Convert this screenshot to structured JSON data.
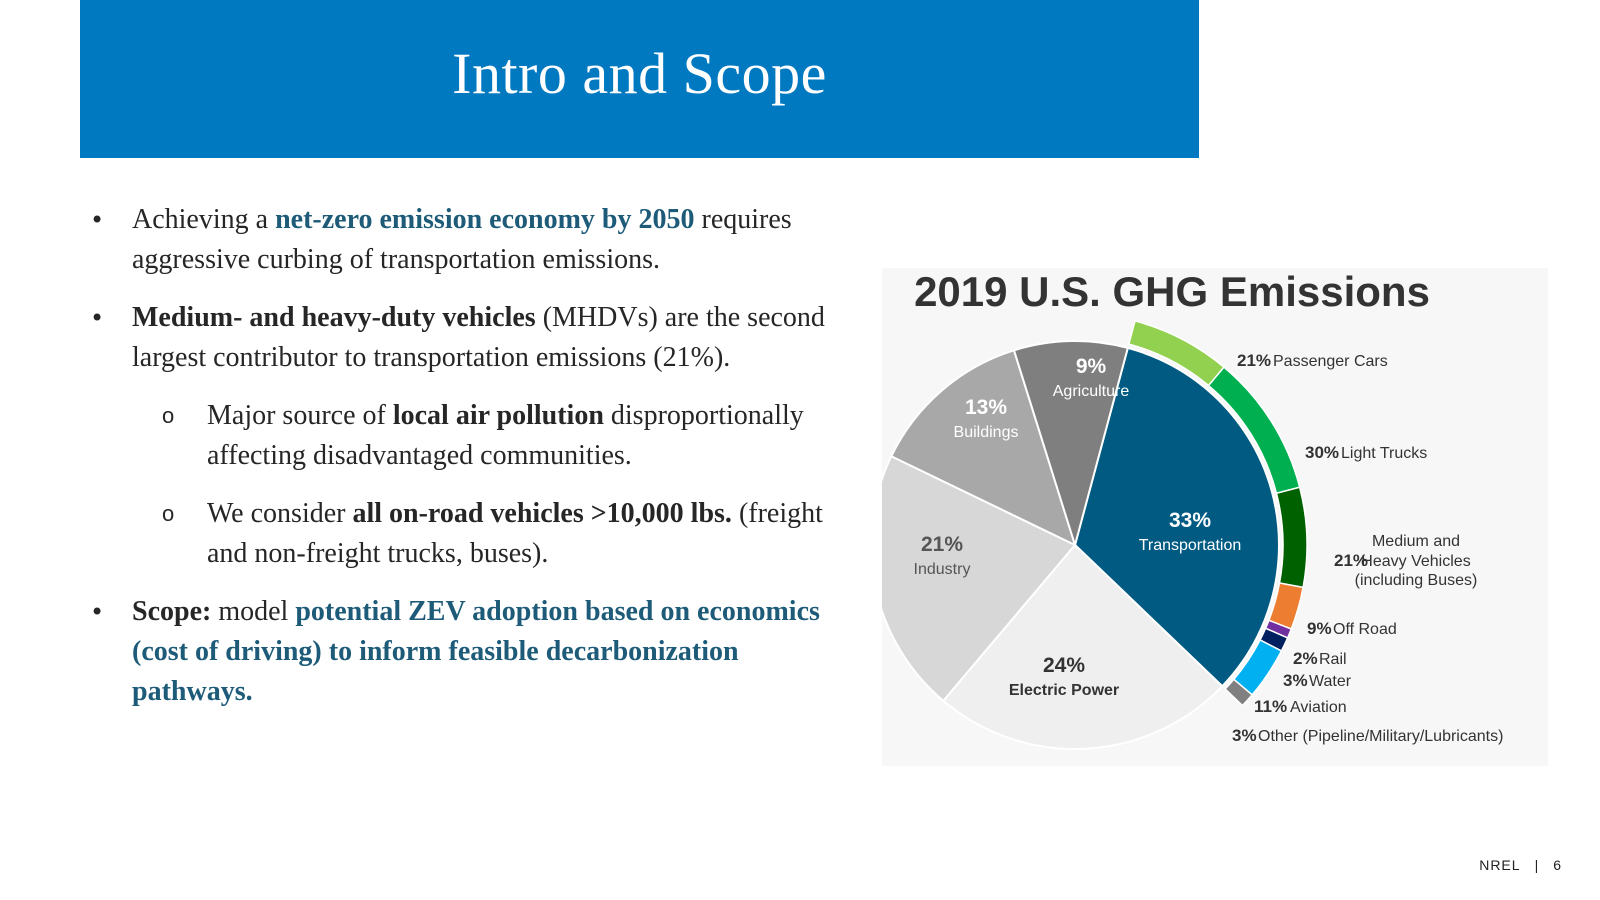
{
  "header": {
    "title": "Intro and Scope"
  },
  "bullets": {
    "b1": {
      "t1": "Achieving a ",
      "hl": "net-zero emission economy by 2050",
      "t2": " requires aggressive curbing of transportation emissions."
    },
    "b2": {
      "bold": "Medium- and heavy-duty vehicles",
      "t1": " (MHDVs) are the second largest contributor to transportation emissions (21%)."
    },
    "s1": {
      "t1": "Major source of ",
      "bold": "local air pollution",
      "t2": " disproportionally affecting disadvantaged communities."
    },
    "s2": {
      "t1": "We consider ",
      "bold": "all on-road vehicles >10,000 lbs.",
      "t2": " (freight and non-freight trucks, buses)."
    },
    "b3": {
      "bold": "Scope:",
      "t1": " model ",
      "hl": "potential ZEV adoption based on economics (cost of driving) to inform feasible decarbonization pathways."
    },
    "bullet_marker": "•",
    "sub_marker": "o"
  },
  "chart_data": {
    "type": "pie",
    "title": "2019 U.S. GHG Emissions",
    "sectors": [
      {
        "name": "Transportation",
        "value": 33,
        "label": "33%",
        "color": "#005a82"
      },
      {
        "name": "Electric Power",
        "value": 24,
        "label": "24%",
        "color": "#efefef"
      },
      {
        "name": "Industry",
        "value": 21,
        "label": "21%",
        "color": "#d7d7d7"
      },
      {
        "name": "Buildings",
        "value": 13,
        "label": "13%",
        "color": "#a8a8a8"
      },
      {
        "name": "Agriculture",
        "value": 9,
        "label": "9%",
        "color": "#7f7f7f"
      }
    ],
    "transportation_breakdown": [
      {
        "name": "Passenger Cars",
        "value": 21,
        "label": "21%",
        "color": "#92d050"
      },
      {
        "name": "Light Trucks",
        "value": 30,
        "label": "30%",
        "color": "#00b050"
      },
      {
        "name": "Medium and Heavy Vehicles (including Buses)",
        "line1": "Medium and",
        "line2": "Heavy Vehicles",
        "line3": "(including Buses)",
        "value": 21,
        "label": "21%",
        "color": "#006100"
      },
      {
        "name": "Off Road",
        "value": 9,
        "label": "9%",
        "color": "#ed7d31"
      },
      {
        "name": "Rail",
        "value": 2,
        "label": "2%",
        "color": "#7030a0"
      },
      {
        "name": "Water",
        "value": 3,
        "label": "3%",
        "color": "#002060"
      },
      {
        "name": "Aviation",
        "value": 11,
        "label": "11%",
        "color": "#00b0f0"
      },
      {
        "name": "Other (Pipeline/Military/Lubricants)",
        "value": 3,
        "label": "3%",
        "color": "#808080"
      }
    ]
  },
  "footer": {
    "org": "NREL",
    "separator": "|",
    "page": "6"
  }
}
